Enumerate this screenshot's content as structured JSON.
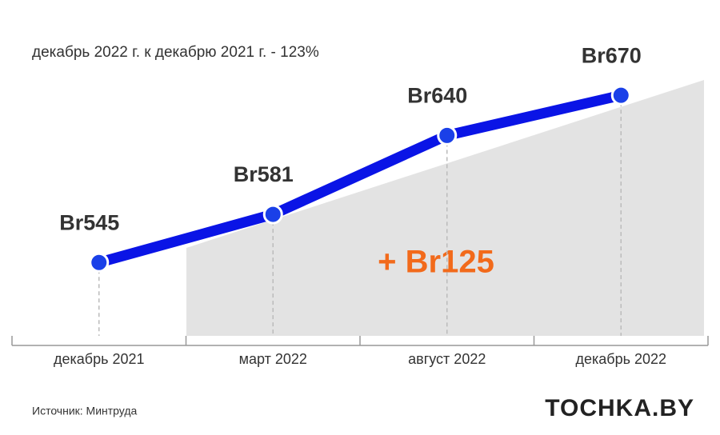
{
  "chart_data": {
    "type": "line",
    "subtitle": "декабрь 2022 г. к декабрю 2021 г. - 123%",
    "categories": [
      "декабрь 2021",
      "март 2022",
      "август 2022",
      "декабрь 2022"
    ],
    "series": [
      {
        "color": "#0a14e6",
        "values": [
          545,
          581,
          640,
          670
        ],
        "value_labels": [
          "Br545",
          "Br581",
          "Br640",
          "Br670"
        ]
      }
    ],
    "ylim": [
      483,
      700
    ],
    "annotation": "+ Br125",
    "source": "Источник: Минтруда",
    "logo": "TOCHKA.BY"
  }
}
